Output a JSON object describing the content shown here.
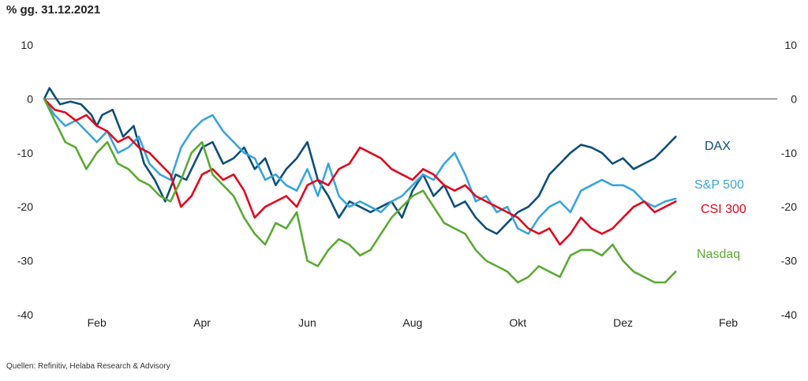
{
  "header": {
    "unit_label": "% gg. 31.12.2021"
  },
  "footer": {
    "source": "Quellen: Refinitiv, Helaba Research & Advisory"
  },
  "chart_data": {
    "type": "line",
    "title": "",
    "xlabel": "",
    "ylabel": "% gg. 31.12.2021",
    "ylim": [
      -40,
      10
    ],
    "yticks": [
      10,
      0,
      -10,
      -20,
      -30,
      -40
    ],
    "xticks": [
      "Feb",
      "Apr",
      "Jun",
      "Aug",
      "Okt",
      "Dez",
      "Feb"
    ],
    "xlim_months": [
      0,
      13
    ],
    "xtick_months": [
      1,
      3,
      5,
      7,
      9,
      11,
      13
    ],
    "zero_line": true,
    "grid": false,
    "legend": "inline-right",
    "series": [
      {
        "name": "DAX",
        "color": "#0d4f78",
        "x": [
          0.0,
          0.1,
          0.2,
          0.3,
          0.5,
          0.7,
          0.9,
          1.0,
          1.1,
          1.3,
          1.5,
          1.7,
          1.9,
          2.1,
          2.3,
          2.5,
          2.7,
          2.9,
          3.0,
          3.2,
          3.4,
          3.6,
          3.8,
          4.0,
          4.2,
          4.4,
          4.6,
          4.8,
          5.0,
          5.2,
          5.4,
          5.6,
          5.8,
          6.0,
          6.2,
          6.4,
          6.6,
          6.8,
          7.0,
          7.2,
          7.4,
          7.6,
          7.8,
          8.0,
          8.2,
          8.4,
          8.6,
          8.8,
          9.0,
          9.2,
          9.4,
          9.6,
          9.8,
          10.0,
          10.2,
          10.4,
          10.6,
          10.8,
          11.0,
          11.2,
          11.4,
          11.6,
          11.8,
          12.0
        ],
        "values": [
          0,
          2.0,
          0.5,
          -1,
          -0.5,
          -1,
          -3,
          -5,
          -3,
          -2,
          -7,
          -5,
          -12,
          -15,
          -19,
          -14,
          -15,
          -11,
          -9,
          -8,
          -12,
          -11,
          -9,
          -13,
          -11,
          -16,
          -13,
          -11,
          -8,
          -15,
          -18,
          -22,
          -19,
          -20,
          -21,
          -20,
          -19,
          -22,
          -17,
          -14,
          -18,
          -16,
          -20,
          -19,
          -22,
          -24,
          -25,
          -23,
          -21,
          -20,
          -18,
          -14,
          -12,
          -10,
          -8.5,
          -9,
          -10,
          -12,
          -11,
          -13,
          -12,
          -11,
          -9,
          -7
        ]
      },
      {
        "name": "S&P 500",
        "color": "#3aa4dc",
        "x": [
          0.0,
          0.2,
          0.4,
          0.6,
          0.8,
          1.0,
          1.2,
          1.4,
          1.6,
          1.8,
          2.0,
          2.2,
          2.4,
          2.6,
          2.8,
          3.0,
          3.2,
          3.4,
          3.6,
          3.8,
          4.0,
          4.2,
          4.4,
          4.6,
          4.8,
          5.0,
          5.2,
          5.4,
          5.6,
          5.8,
          6.0,
          6.2,
          6.4,
          6.6,
          6.8,
          7.0,
          7.2,
          7.4,
          7.6,
          7.8,
          8.0,
          8.2,
          8.4,
          8.6,
          8.8,
          9.0,
          9.2,
          9.4,
          9.6,
          9.8,
          10.0,
          10.2,
          10.4,
          10.6,
          10.8,
          11.0,
          11.2,
          11.4,
          11.6,
          11.8,
          12.0
        ],
        "values": [
          0,
          -3,
          -5,
          -4,
          -6,
          -8,
          -6,
          -10,
          -9,
          -7,
          -12,
          -14,
          -15,
          -9,
          -6,
          -4,
          -3,
          -6,
          -8,
          -10,
          -11,
          -15,
          -14,
          -16,
          -17,
          -13,
          -18,
          -12,
          -18,
          -20,
          -19,
          -20,
          -21,
          -19,
          -18,
          -16,
          -14,
          -15,
          -12,
          -10,
          -14,
          -19,
          -18,
          -21,
          -20,
          -24,
          -25,
          -22,
          -20,
          -19,
          -21,
          -17,
          -16,
          -15,
          -16,
          -16,
          -17,
          -19,
          -20,
          -19,
          -18.5
        ]
      },
      {
        "name": "CSI 300",
        "color": "#e3071b",
        "x": [
          0.0,
          0.2,
          0.4,
          0.6,
          0.8,
          1.0,
          1.2,
          1.4,
          1.6,
          1.8,
          2.0,
          2.2,
          2.4,
          2.6,
          2.8,
          3.0,
          3.2,
          3.4,
          3.6,
          3.8,
          4.0,
          4.2,
          4.4,
          4.6,
          4.8,
          5.0,
          5.2,
          5.4,
          5.6,
          5.8,
          6.0,
          6.2,
          6.4,
          6.6,
          6.8,
          7.0,
          7.2,
          7.4,
          7.6,
          7.8,
          8.0,
          8.2,
          8.4,
          8.6,
          8.8,
          9.0,
          9.2,
          9.4,
          9.6,
          9.8,
          10.0,
          10.2,
          10.4,
          10.6,
          10.8,
          11.0,
          11.2,
          11.4,
          11.6,
          11.8,
          12.0
        ],
        "values": [
          0,
          -2,
          -2.5,
          -4,
          -3,
          -5,
          -6,
          -8,
          -7,
          -9,
          -10,
          -12,
          -14,
          -20,
          -18,
          -14,
          -13,
          -15,
          -14,
          -17,
          -22,
          -20,
          -19,
          -18,
          -20,
          -16,
          -15,
          -16,
          -13,
          -12,
          -9,
          -10,
          -11,
          -13,
          -14,
          -15,
          -13,
          -14,
          -16,
          -17,
          -16,
          -18,
          -19,
          -20,
          -21,
          -22,
          -24,
          -25,
          -24,
          -27,
          -25,
          -22,
          -24,
          -25,
          -24,
          -22,
          -20,
          -19,
          -21,
          -20,
          -19
        ]
      },
      {
        "name": "Nasdaq",
        "color": "#5aaa33",
        "x": [
          0.0,
          0.2,
          0.4,
          0.6,
          0.8,
          1.0,
          1.2,
          1.4,
          1.6,
          1.8,
          2.0,
          2.2,
          2.4,
          2.6,
          2.8,
          3.0,
          3.2,
          3.4,
          3.6,
          3.8,
          4.0,
          4.2,
          4.4,
          4.6,
          4.8,
          5.0,
          5.2,
          5.4,
          5.6,
          5.8,
          6.0,
          6.2,
          6.4,
          6.6,
          6.8,
          7.0,
          7.2,
          7.4,
          7.6,
          7.8,
          8.0,
          8.2,
          8.4,
          8.6,
          8.8,
          9.0,
          9.2,
          9.4,
          9.6,
          9.8,
          10.0,
          10.2,
          10.4,
          10.6,
          10.8,
          11.0,
          11.2,
          11.4,
          11.6,
          11.8,
          12.0
        ],
        "values": [
          0,
          -4,
          -8,
          -9,
          -13,
          -10,
          -8,
          -12,
          -13,
          -15,
          -16,
          -18,
          -19,
          -15,
          -10,
          -8,
          -14,
          -16,
          -18,
          -22,
          -25,
          -27,
          -23,
          -24,
          -21,
          -30,
          -31,
          -28,
          -26,
          -27,
          -29,
          -28,
          -25,
          -22,
          -20,
          -18,
          -17,
          -20,
          -23,
          -24,
          -25,
          -28,
          -30,
          -31,
          -32,
          -34,
          -33,
          -31,
          -32,
          -33,
          -29,
          -28,
          -28,
          -29,
          -27,
          -30,
          -32,
          -33,
          -34,
          -34,
          -32
        ]
      }
    ]
  }
}
